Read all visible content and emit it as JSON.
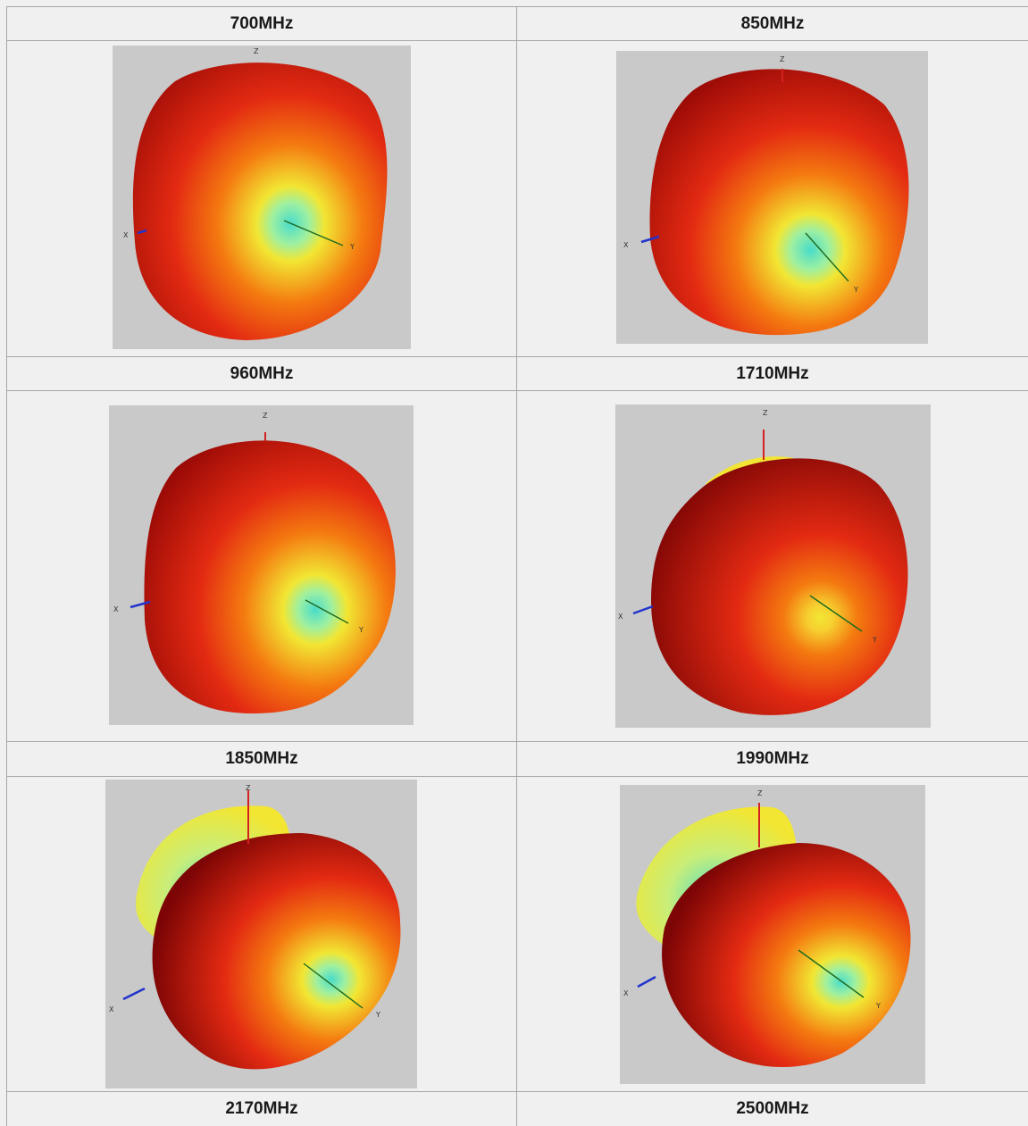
{
  "figure": {
    "cells": [
      {
        "id": "c700",
        "label": "700MHz"
      },
      {
        "id": "c850",
        "label": "850MHz"
      },
      {
        "id": "c960",
        "label": "960MHz"
      },
      {
        "id": "c1710",
        "label": "1710MHz"
      },
      {
        "id": "c1850",
        "label": "1850MHz"
      },
      {
        "id": "c1990",
        "label": "1990MHz"
      },
      {
        "id": "c2170",
        "label": "2170MHz"
      },
      {
        "id": "c2500",
        "label": "2500MHz"
      }
    ],
    "axis_labels": {
      "x": "X",
      "y": "Y",
      "z": "Z"
    },
    "colors": {
      "panel_bg": "#c9c9c9",
      "pattern_dark": "#7d0505",
      "pattern_red": "#e32a12",
      "pattern_orange": "#f47a10",
      "pattern_yellow": "#f2e633",
      "pattern_cyan": "#49dccb",
      "axis_x": "#2233cc",
      "axis_y": "#1e6a1e",
      "axis_z": "#d42020"
    }
  }
}
